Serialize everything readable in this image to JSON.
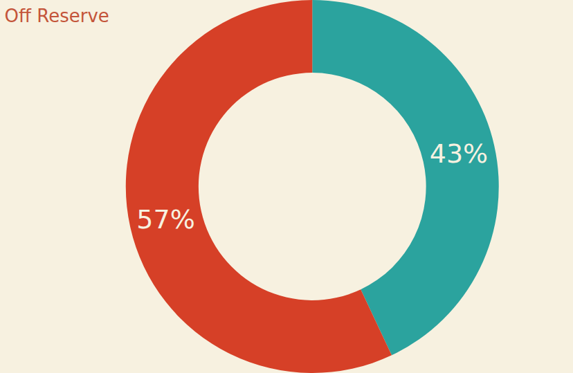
{
  "chart_data": {
    "type": "pie",
    "title": "Off Reserve",
    "values": [
      43,
      57
    ],
    "value_labels": [
      "43%",
      "57%"
    ],
    "colors": [
      "#2BA39E",
      "#D64027"
    ],
    "data_labels": true
  }
}
